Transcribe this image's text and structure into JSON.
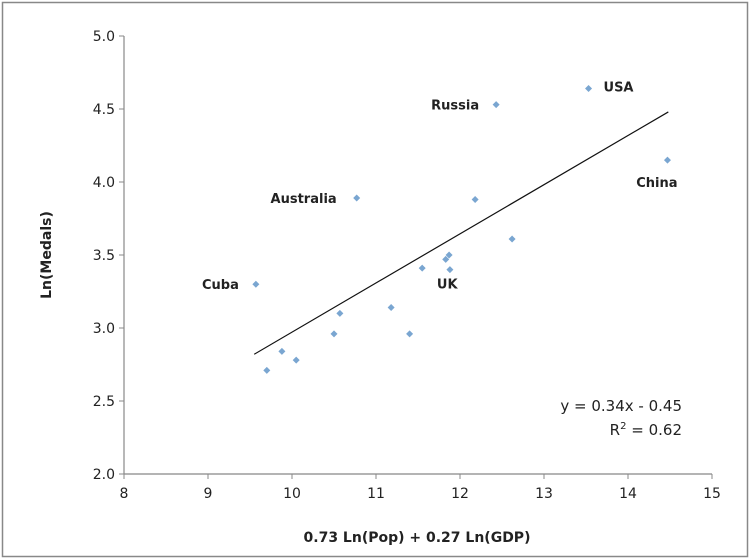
{
  "chart_data": {
    "type": "scatter",
    "xlabel": "0.73 Ln(Pop) + 0.27 Ln(GDP)",
    "ylabel": "Ln(Medals)",
    "xlim": [
      8,
      15
    ],
    "ylim": [
      2.0,
      5.0
    ],
    "x_ticks": [
      "8",
      "9",
      "10",
      "11",
      "12",
      "13",
      "14",
      "15"
    ],
    "y_ticks": [
      "2.0",
      "2.5",
      "3.0",
      "3.5",
      "4.0",
      "4.5",
      "5.0"
    ],
    "grid": false,
    "colors": {
      "marker": "#7aa6d1",
      "trendline": "#111111",
      "frame": "#888888"
    },
    "points": [
      {
        "x": 9.57,
        "y": 3.3,
        "label": "Cuba"
      },
      {
        "x": 9.7,
        "y": 2.71
      },
      {
        "x": 9.88,
        "y": 2.84
      },
      {
        "x": 10.05,
        "y": 2.78
      },
      {
        "x": 10.5,
        "y": 2.96
      },
      {
        "x": 10.57,
        "y": 3.1
      },
      {
        "x": 10.77,
        "y": 3.89,
        "label": "Australia"
      },
      {
        "x": 11.18,
        "y": 3.14
      },
      {
        "x": 11.4,
        "y": 2.96
      },
      {
        "x": 11.55,
        "y": 3.41
      },
      {
        "x": 11.83,
        "y": 3.47
      },
      {
        "x": 11.87,
        "y": 3.5
      },
      {
        "x": 11.88,
        "y": 3.4,
        "label": "UK"
      },
      {
        "x": 12.18,
        "y": 3.88
      },
      {
        "x": 12.43,
        "y": 4.53,
        "label": "Russia"
      },
      {
        "x": 12.62,
        "y": 3.61
      },
      {
        "x": 13.53,
        "y": 4.64,
        "label": "USA"
      },
      {
        "x": 14.47,
        "y": 4.15,
        "label": "China"
      }
    ],
    "trendline": {
      "x": [
        9.55,
        14.48
      ],
      "y": [
        2.82,
        4.48
      ]
    },
    "equation": {
      "line1": "y = 0.34x - 0.45",
      "r2_prefix": "R",
      "r2_sup": "2",
      "r2_suffix": " = 0.62"
    }
  }
}
